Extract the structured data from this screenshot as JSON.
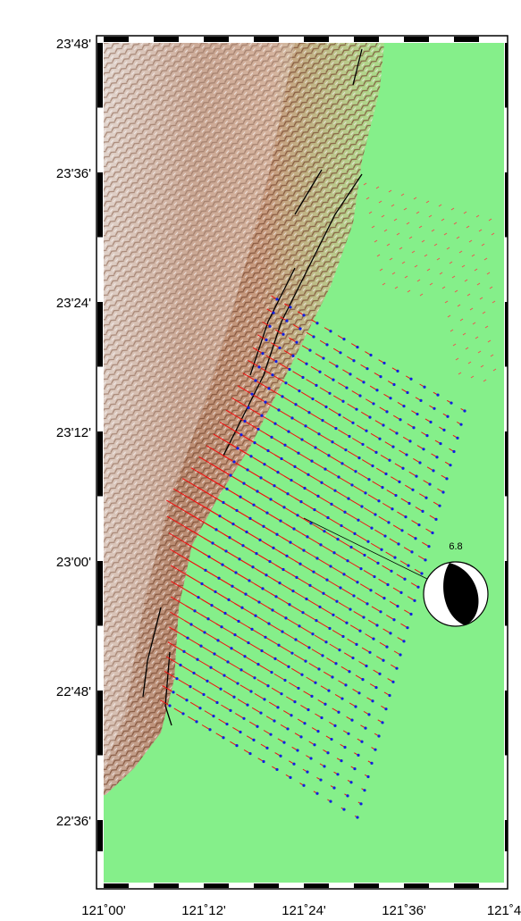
{
  "map": {
    "lat_labels": [
      "23'48'",
      "23'36'",
      "23'24'",
      "23'12'",
      "23'00'",
      "22'48'",
      "22'36'"
    ],
    "lon_labels": [
      "121˚00'",
      "121˚12'",
      "121˚24'",
      "121˚36'",
      "121˚4"
    ],
    "magnitude": "6.8"
  }
}
